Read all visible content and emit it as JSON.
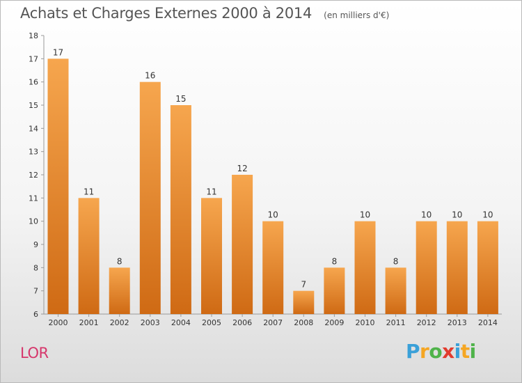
{
  "title": "Achats et Charges Externes 2000 à 2014",
  "subtitle": "(en milliers d'€)",
  "location": "LOR",
  "brand": {
    "letters": [
      "P",
      "r",
      "o",
      "x",
      "i",
      "t",
      "i"
    ],
    "colors": [
      "#3aa0d8",
      "#f5a623",
      "#4fb34a",
      "#e23b2e",
      "#3aa0d8",
      "#f5a623",
      "#4fb34a"
    ]
  },
  "colors": {
    "bar_top": "#f6a64e",
    "bar_bottom": "#cf6a14",
    "axis": "#999999",
    "grid_tick": "#999999",
    "text": "#333333"
  },
  "chart_data": {
    "type": "bar",
    "categories": [
      "2000",
      "2001",
      "2002",
      "2003",
      "2004",
      "2005",
      "2006",
      "2007",
      "2008",
      "2009",
      "2010",
      "2011",
      "2012",
      "2013",
      "2014"
    ],
    "values": [
      17,
      11,
      8,
      16,
      15,
      11,
      12,
      10,
      7,
      8,
      10,
      8,
      10,
      10,
      10
    ],
    "data_labels": [
      "17",
      "11",
      "8",
      "16",
      "15",
      "11",
      "12",
      "10",
      "7",
      "8",
      "10",
      "8",
      "10",
      "10",
      "10"
    ],
    "ylim": [
      6,
      18
    ],
    "yticks": [
      "6",
      "7",
      "8",
      "9",
      "10",
      "11",
      "12",
      "13",
      "14",
      "15",
      "16",
      "17",
      "18"
    ],
    "grid": false,
    "legend": "none"
  }
}
